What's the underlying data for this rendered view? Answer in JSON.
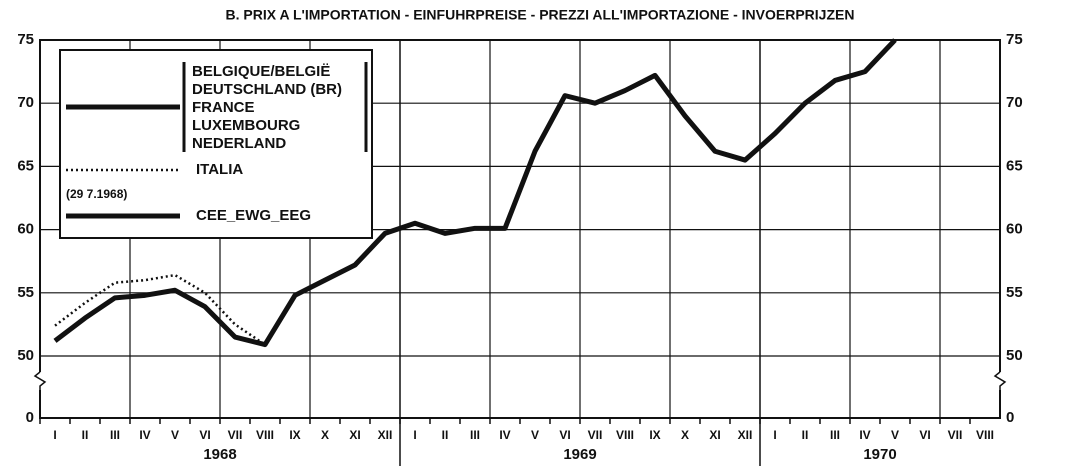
{
  "chart_data": {
    "type": "line",
    "title": "B. PRIX A L'IMPORTATION - EINFUHRPREISE - PREZZI ALL'IMPORTAZIONE - INVOERPRIJZEN",
    "categories": [
      "I",
      "II",
      "III",
      "IV",
      "V",
      "VI",
      "VII",
      "VIII",
      "IX",
      "X",
      "XI",
      "XII",
      "I",
      "II",
      "III",
      "IV",
      "V",
      "VI",
      "VII",
      "VIII",
      "IX",
      "X",
      "XI",
      "XII",
      "I",
      "II",
      "III",
      "IV",
      "V",
      "VI",
      "VII",
      "VIII"
    ],
    "years": [
      "1968",
      "1969",
      "1970"
    ],
    "series": [
      {
        "name": "ITALIA",
        "color": "#111111",
        "style": "dotted",
        "values": [
          52.4,
          54.2,
          55.8,
          56.0,
          56.4,
          55.0,
          52.5,
          50.9,
          null,
          null,
          null,
          null,
          null,
          null,
          null,
          null,
          null,
          null,
          null,
          null,
          null,
          null,
          null,
          null,
          null,
          null,
          null,
          null,
          null,
          null,
          null,
          null
        ]
      },
      {
        "name": "CEE_EWG_EEG",
        "color": "#111111",
        "style": "solid",
        "values": [
          51.2,
          53.0,
          54.6,
          54.8,
          55.2,
          53.9,
          51.5,
          50.9,
          54.8,
          56.0,
          57.2,
          59.7,
          60.5,
          59.7,
          60.1,
          60.1,
          66.2,
          70.6,
          70.0,
          71.0,
          72.2,
          69.0,
          66.2,
          65.5,
          67.6,
          70.0,
          71.8,
          72.5,
          75.0,
          null,
          null,
          null
        ]
      }
    ],
    "legend_group": [
      "BELGIQUE/BELGIË",
      "DEUTSCHLAND (BR)",
      "FRANCE",
      "LUXEMBOURG",
      "NEDERLAND"
    ],
    "legend_note": "(29 7.1968)",
    "ylim": [
      50,
      75
    ],
    "yticks": [
      0,
      50,
      55,
      60,
      65,
      70,
      75
    ],
    "axis_break": true,
    "grid": true
  }
}
